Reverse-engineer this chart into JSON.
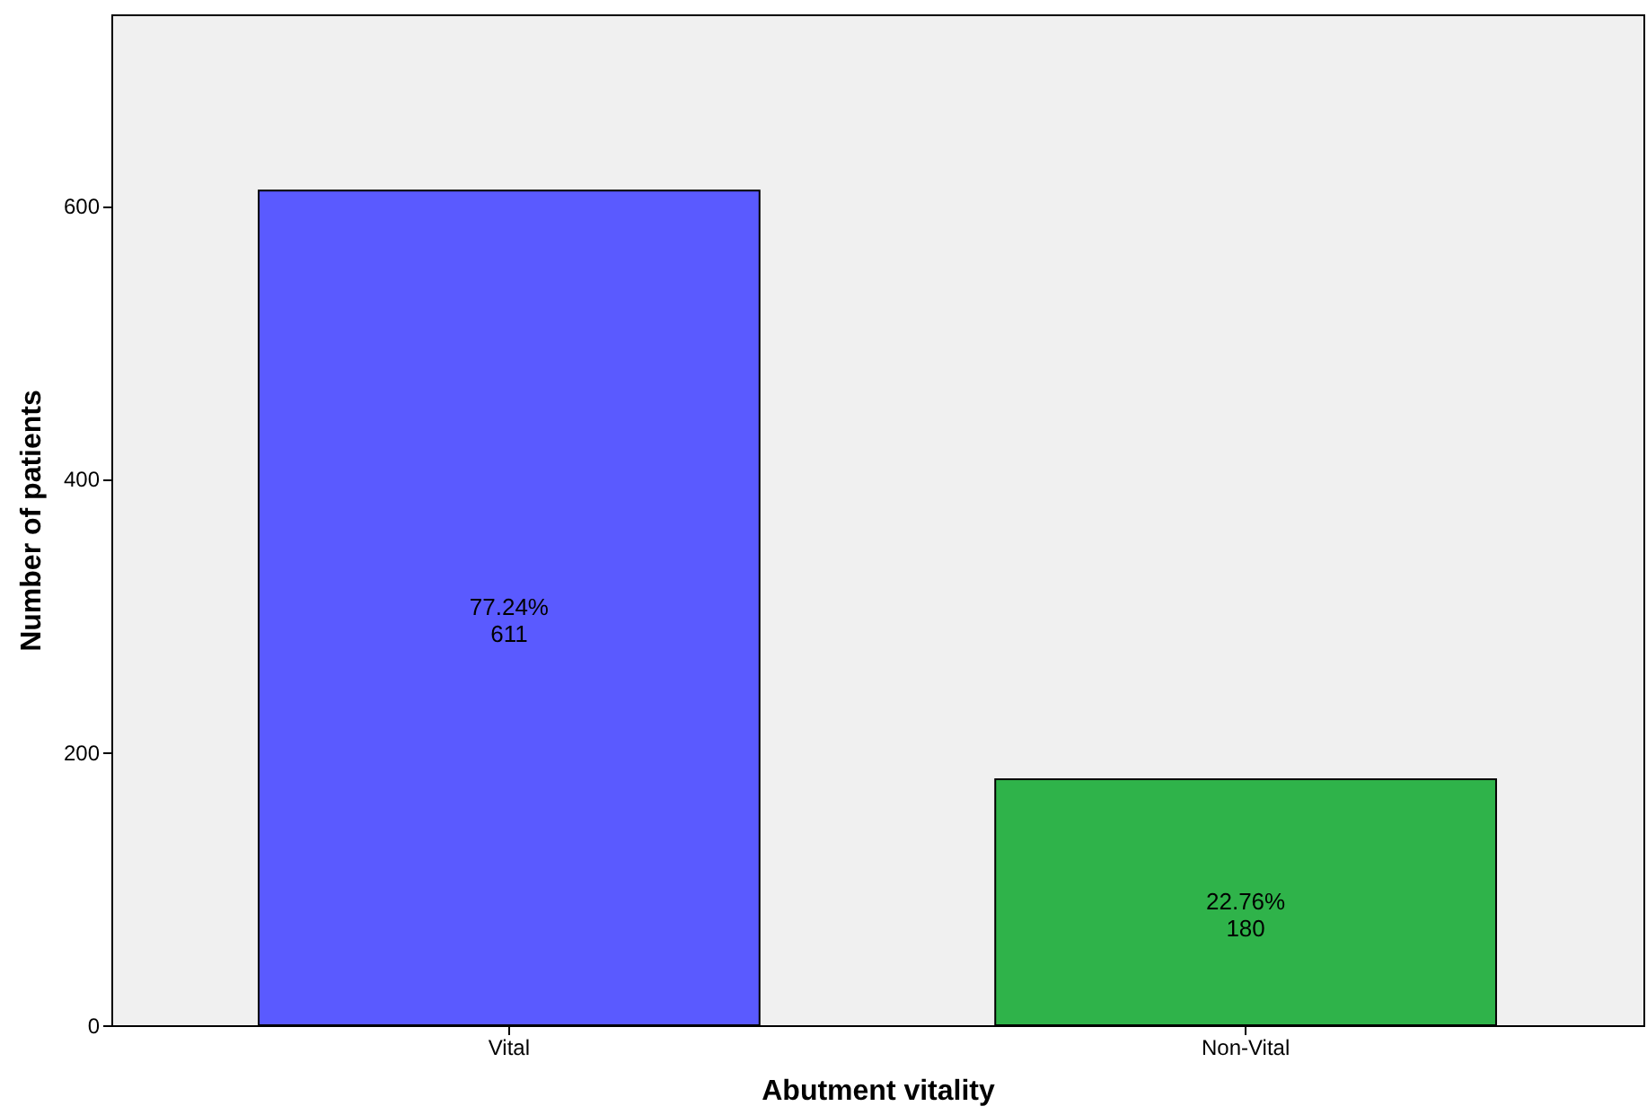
{
  "chart_data": {
    "type": "bar",
    "xlabel": "Abutment vitality",
    "ylabel": "Number of patients",
    "categories": [
      "Vital",
      "Non-Vital"
    ],
    "values": [
      611,
      180
    ],
    "colors": [
      "#5a5aff",
      "#2fb34a"
    ],
    "value_labels": [
      "77.24%\n611",
      "22.76%\n180"
    ],
    "ylim": [
      0,
      740
    ],
    "yticks": [
      0,
      200,
      400,
      600
    ],
    "grid": false,
    "legend": false
  }
}
